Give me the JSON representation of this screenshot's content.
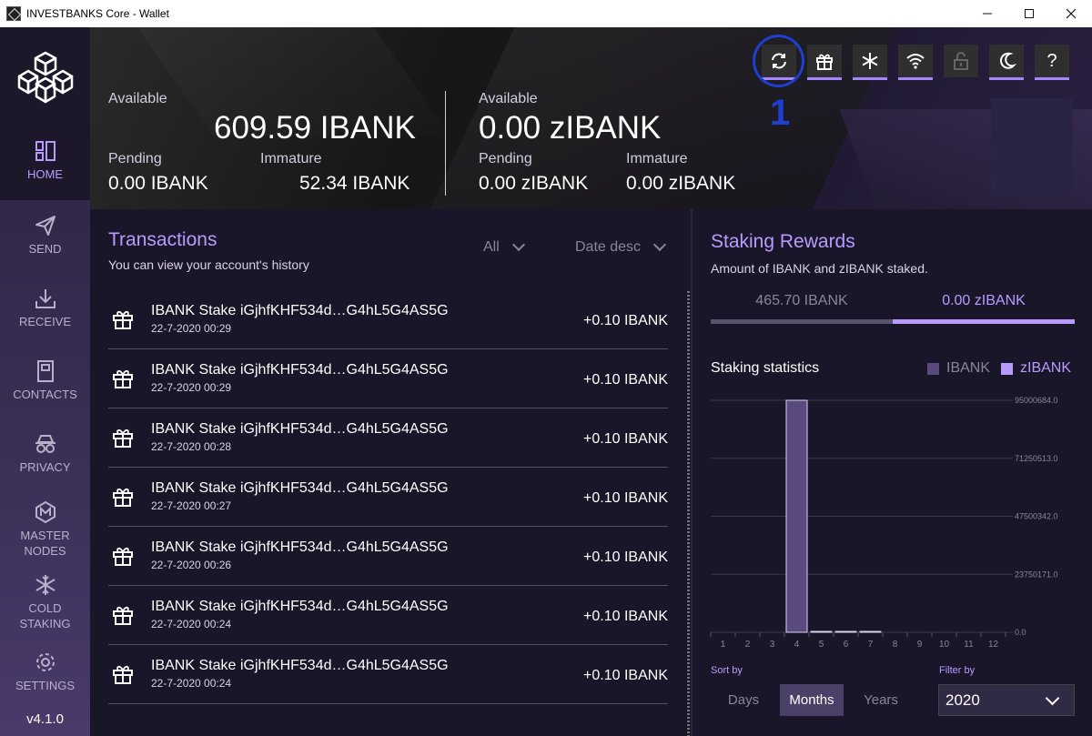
{
  "window": {
    "title": "INVESTBANKS Core - Wallet",
    "minimize": "—",
    "maximize": "☐",
    "close": "✕"
  },
  "sidebar": {
    "items": [
      {
        "label": "HOME",
        "icon": "home-icon"
      },
      {
        "label": "SEND",
        "icon": "send-icon"
      },
      {
        "label": "RECEIVE",
        "icon": "receive-icon"
      },
      {
        "label": "CONTACTS",
        "icon": "contacts-icon"
      },
      {
        "label": "PRIVACY",
        "icon": "privacy-icon"
      },
      {
        "label": "MASTER\nNODES",
        "icon": "masternodes-icon"
      },
      {
        "label": "COLD\nSTAKING",
        "icon": "cold-staking-icon"
      },
      {
        "label": "SETTINGS",
        "icon": "settings-icon"
      }
    ],
    "version": "v4.1.0"
  },
  "header": {
    "left": {
      "available_label": "Available",
      "available_value": "609.59 IBANK",
      "pending_label": "Pending",
      "pending_value": "0.00 IBANK",
      "immature_label": "Immature",
      "immature_value": "52.34 IBANK"
    },
    "right": {
      "available_label": "Available",
      "available_value": "0.00 zIBANK",
      "pending_label": "Pending",
      "pending_value": "0.00 zIBANK",
      "immature_label": "Immature",
      "immature_value": "0.00 zIBANK"
    },
    "toolbar": {
      "refresh": "⟳",
      "gift": "🎁",
      "snowflake": "❄",
      "wifi": "wifi",
      "lock": "lock",
      "moon": "☾",
      "help": "?"
    },
    "annotation": "1"
  },
  "transactions": {
    "title": "Transactions",
    "subtitle": "You can view your account's history",
    "filter_type": "All",
    "filter_sort": "Date desc",
    "rows": [
      {
        "type": "IBANK Stake",
        "address": "iGjhfKHF534d…G4hL5G4AS5G",
        "date": "22-7-2020 00:29",
        "amount": "+0.10 IBANK"
      },
      {
        "type": "IBANK Stake",
        "address": "iGjhfKHF534d…G4hL5G4AS5G",
        "date": "22-7-2020 00:29",
        "amount": "+0.10 IBANK"
      },
      {
        "type": "IBANK Stake",
        "address": "iGjhfKHF534d…G4hL5G4AS5G",
        "date": "22-7-2020 00:28",
        "amount": "+0.10 IBANK"
      },
      {
        "type": "IBANK Stake",
        "address": "iGjhfKHF534d…G4hL5G4AS5G",
        "date": "22-7-2020 00:27",
        "amount": "+0.10 IBANK"
      },
      {
        "type": "IBANK Stake",
        "address": "iGjhfKHF534d…G4hL5G4AS5G",
        "date": "22-7-2020 00:26",
        "amount": "+0.10 IBANK"
      },
      {
        "type": "IBANK Stake",
        "address": "iGjhfKHF534d…G4hL5G4AS5G",
        "date": "22-7-2020 00:24",
        "amount": "+0.10 IBANK"
      },
      {
        "type": "IBANK Stake",
        "address": "iGjhfKHF534d…G4hL5G4AS5G",
        "date": "22-7-2020 00:24",
        "amount": "+0.10 IBANK"
      }
    ]
  },
  "staking": {
    "title": "Staking Rewards",
    "subtitle": "Amount of IBANK and zIBANK staked.",
    "tab_ibank": "465.70 IBANK",
    "tab_zibank": "0.00 zIBANK",
    "stats_title": "Staking statistics",
    "sort_label": "Sort by",
    "filter_label": "Filter by",
    "sort_options": [
      "Days",
      "Months",
      "Years"
    ],
    "selected_sort": "Months",
    "year": "2020",
    "colors": {
      "ibank": "#5b4a80",
      "zibank": "#b99bff",
      "accent": "#b99bff"
    }
  },
  "chart_data": {
    "type": "bar",
    "categories": [
      "1",
      "2",
      "3",
      "4",
      "5",
      "6",
      "7",
      "8",
      "9",
      "10",
      "11",
      "12"
    ],
    "series": [
      {
        "name": "IBANK",
        "values": [
          0,
          0,
          0,
          95000684.0,
          200000,
          150000,
          120000,
          0,
          0,
          0,
          0,
          0
        ]
      },
      {
        "name": "zIBANK",
        "values": [
          0,
          0,
          0,
          0,
          0,
          0,
          0,
          0,
          0,
          0,
          0,
          0
        ]
      }
    ],
    "yticks": [
      "95000684.0",
      "71250513.0",
      "47500342.0",
      "23750171.0",
      "0.0"
    ],
    "ylim": [
      0,
      95000684.0
    ],
    "legend": "top-right",
    "grid": true
  }
}
